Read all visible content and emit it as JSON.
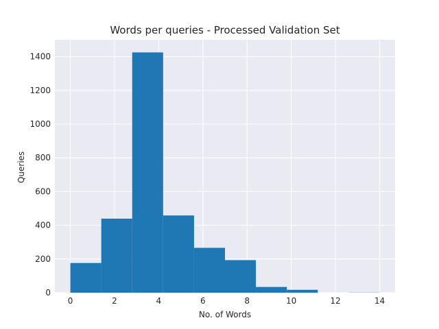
{
  "chart_data": {
    "type": "bar",
    "title": "Words per queries - Processed Validation Set",
    "xlabel": "No. of Words",
    "ylabel": "Queries",
    "xlim": [
      -0.7,
      14.7
    ],
    "ylim": [
      0,
      1500
    ],
    "grid": true,
    "colors": {
      "bar": "#1f77b4",
      "plot_bg": "#eaeaf2",
      "grid": "#ffffff"
    },
    "bins": [
      {
        "x0": 0.0,
        "x1": 1.4,
        "value": 176
      },
      {
        "x0": 1.4,
        "x1": 2.8,
        "value": 439
      },
      {
        "x0": 2.8,
        "x1": 4.2,
        "value": 1425
      },
      {
        "x0": 4.2,
        "x1": 5.6,
        "value": 458
      },
      {
        "x0": 5.6,
        "x1": 7.0,
        "value": 266
      },
      {
        "x0": 7.0,
        "x1": 8.4,
        "value": 193
      },
      {
        "x0": 8.4,
        "x1": 9.8,
        "value": 34
      },
      {
        "x0": 9.8,
        "x1": 11.2,
        "value": 17
      },
      {
        "x0": 11.2,
        "x1": 12.6,
        "value": 0
      },
      {
        "x0": 12.6,
        "x1": 14.0,
        "value": 1
      }
    ],
    "xticks": [
      0,
      2,
      4,
      6,
      8,
      10,
      12,
      14
    ],
    "xtick_labels": [
      "0",
      "2",
      "4",
      "6",
      "8",
      "10",
      "12",
      "14"
    ],
    "yticks": [
      0,
      200,
      400,
      600,
      800,
      1000,
      1200,
      1400
    ],
    "ytick_labels": [
      "0",
      "200",
      "400",
      "600",
      "800",
      "1000",
      "1200",
      "1400"
    ]
  }
}
